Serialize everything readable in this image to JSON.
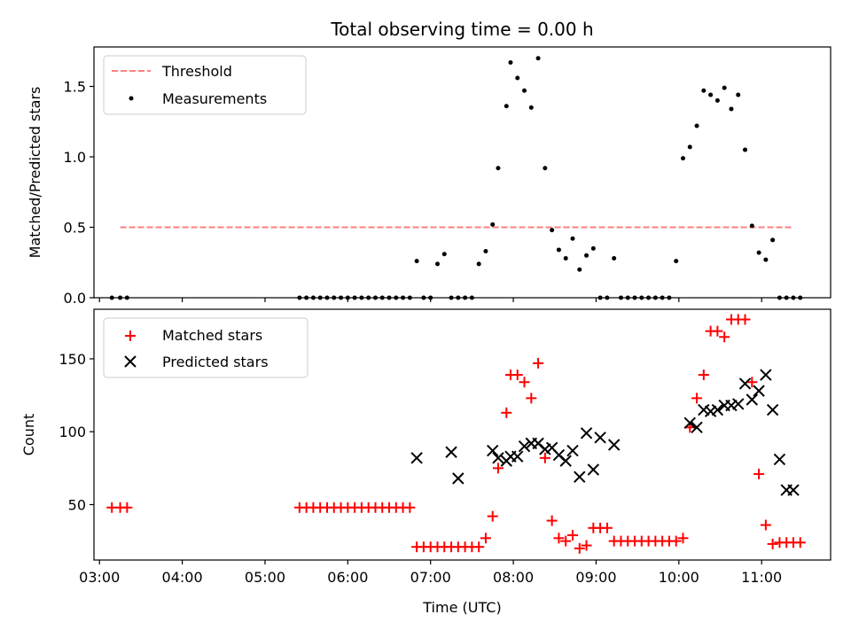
{
  "chart_data": [
    {
      "type": "scatter",
      "title": "Total observing time = 0.00 h",
      "xlabel": "",
      "ylabel": "Matched/Predicted stars",
      "xlim": [
        "02:56",
        "11:50"
      ],
      "ylim": [
        0,
        1.78
      ],
      "yticks": [
        0.0,
        0.5,
        1.0,
        1.5
      ],
      "ytick_labels": [
        "0.0",
        "0.5",
        "1.0",
        "1.5"
      ],
      "legend_position": "upper left",
      "series": [
        {
          "name": "Threshold",
          "kind": "dashed-line",
          "color": "#ff7f7f",
          "x": [
            "03:15",
            "11:22"
          ],
          "y": [
            0.5,
            0.5
          ]
        },
        {
          "name": "Measurements",
          "kind": "dot",
          "color": "#000000",
          "x": [
            "03:09",
            "03:15",
            "03:20",
            "05:25",
            "05:30",
            "05:35",
            "05:40",
            "05:45",
            "05:50",
            "05:55",
            "06:00",
            "06:05",
            "06:10",
            "06:15",
            "06:20",
            "06:25",
            "06:30",
            "06:35",
            "06:40",
            "06:45",
            "06:50",
            "06:55",
            "07:00",
            "07:05",
            "07:10",
            "07:15",
            "07:20",
            "07:25",
            "07:30",
            "07:35",
            "07:40",
            "07:45",
            "07:49",
            "07:55",
            "07:58",
            "08:03",
            "08:08",
            "08:13",
            "08:18",
            "08:23",
            "08:28",
            "08:33",
            "08:38",
            "08:43",
            "08:48",
            "08:53",
            "08:58",
            "09:03",
            "09:08",
            "09:13",
            "09:18",
            "09:23",
            "09:28",
            "09:33",
            "09:38",
            "09:43",
            "09:48",
            "09:53",
            "09:58",
            "10:03",
            "10:08",
            "10:13",
            "10:18",
            "10:23",
            "10:28",
            "10:33",
            "10:38",
            "10:43",
            "10:48",
            "10:53",
            "10:58",
            "11:03",
            "11:08",
            "11:13",
            "11:18",
            "11:23",
            "11:28"
          ],
          "y": [
            0,
            0,
            0,
            0,
            0,
            0,
            0,
            0,
            0,
            0,
            0,
            0,
            0,
            0,
            0,
            0,
            0,
            0,
            0,
            0,
            0.26,
            0,
            0,
            0.24,
            0.31,
            0,
            0,
            0,
            0,
            0.24,
            0.33,
            0.52,
            0.92,
            1.36,
            1.67,
            1.56,
            1.47,
            1.35,
            1.7,
            0.92,
            0.48,
            0.34,
            0.28,
            0.42,
            0.2,
            0.3,
            0.35,
            0,
            0,
            0.28,
            0,
            0,
            0,
            0,
            0,
            0,
            0,
            0,
            0.26,
            0.99,
            1.07,
            1.22,
            1.47,
            1.44,
            1.4,
            1.49,
            1.34,
            1.44,
            1.05,
            0.51,
            0.32,
            0.27,
            0.41,
            0,
            0,
            0,
            0
          ]
        }
      ]
    },
    {
      "type": "scatter",
      "title": "",
      "xlabel": "Time (UTC)",
      "ylabel": "Count",
      "xlim": [
        "02:56",
        "11:50"
      ],
      "ylim": [
        12,
        184
      ],
      "yticks": [
        50,
        100,
        150
      ],
      "ytick_labels": [
        "50",
        "100",
        "150"
      ],
      "xticks": [
        "03:00",
        "04:00",
        "05:00",
        "06:00",
        "07:00",
        "08:00",
        "09:00",
        "10:00",
        "11:00"
      ],
      "xtick_labels": [
        "03:00",
        "04:00",
        "05:00",
        "06:00",
        "07:00",
        "08:00",
        "09:00",
        "10:00",
        "11:00"
      ],
      "legend_position": "upper left",
      "series": [
        {
          "name": "Matched stars",
          "kind": "plus",
          "color": "#ff0000",
          "x": [
            "03:09",
            "03:15",
            "03:20",
            "05:25",
            "05:30",
            "05:35",
            "05:40",
            "05:45",
            "05:50",
            "05:55",
            "06:00",
            "06:05",
            "06:10",
            "06:15",
            "06:20",
            "06:25",
            "06:30",
            "06:35",
            "06:40",
            "06:45",
            "06:50",
            "06:55",
            "07:00",
            "07:05",
            "07:10",
            "07:15",
            "07:20",
            "07:25",
            "07:30",
            "07:35",
            "07:40",
            "07:45",
            "07:49",
            "07:55",
            "07:58",
            "08:03",
            "08:08",
            "08:13",
            "08:18",
            "08:23",
            "08:28",
            "08:33",
            "08:38",
            "08:43",
            "08:48",
            "08:53",
            "08:58",
            "09:03",
            "09:08",
            "09:13",
            "09:18",
            "09:23",
            "09:28",
            "09:33",
            "09:38",
            "09:43",
            "09:48",
            "09:53",
            "09:58",
            "10:03",
            "10:08",
            "10:13",
            "10:18",
            "10:23",
            "10:28",
            "10:33",
            "10:38",
            "10:43",
            "10:48",
            "10:53",
            "10:58",
            "11:03",
            "11:08",
            "11:13",
            "11:18",
            "11:23",
            "11:28"
          ],
          "y": [
            48,
            48,
            48,
            48,
            48,
            48,
            48,
            48,
            48,
            48,
            48,
            48,
            48,
            48,
            48,
            48,
            48,
            48,
            48,
            48,
            21,
            21,
            21,
            21,
            21,
            21,
            21,
            21,
            21,
            21,
            27,
            42,
            75,
            113,
            139,
            139,
            134,
            123,
            147,
            82,
            39,
            27,
            25,
            29,
            20,
            22,
            34,
            34,
            34,
            25,
            25,
            25,
            25,
            25,
            25,
            25,
            25,
            25,
            25,
            27,
            103,
            123,
            139,
            169,
            169,
            165,
            177,
            177,
            177,
            134,
            71,
            36,
            23,
            24,
            24,
            24,
            24
          ]
        },
        {
          "name": "Predicted stars",
          "kind": "cross",
          "color": "#000000",
          "x": [
            "06:50",
            "07:15",
            "07:20",
            "07:45",
            "07:49",
            "07:55",
            "07:58",
            "08:03",
            "08:08",
            "08:13",
            "08:18",
            "08:23",
            "08:28",
            "08:33",
            "08:38",
            "08:43",
            "08:48",
            "08:53",
            "08:58",
            "09:03",
            "09:13",
            "10:08",
            "10:13",
            "10:18",
            "10:23",
            "10:28",
            "10:33",
            "10:38",
            "10:43",
            "10:48",
            "10:53",
            "10:58",
            "11:03",
            "11:08",
            "11:13",
            "11:18",
            "11:23"
          ],
          "y": [
            82,
            86,
            68,
            87,
            82,
            80,
            83,
            83,
            90,
            92,
            92,
            88,
            89,
            84,
            80,
            87,
            69,
            99,
            74,
            96,
            91,
            106,
            103,
            115,
            114,
            115,
            118,
            118,
            119,
            133,
            122,
            128,
            139,
            115,
            81,
            60,
            60
          ]
        }
      ]
    }
  ]
}
